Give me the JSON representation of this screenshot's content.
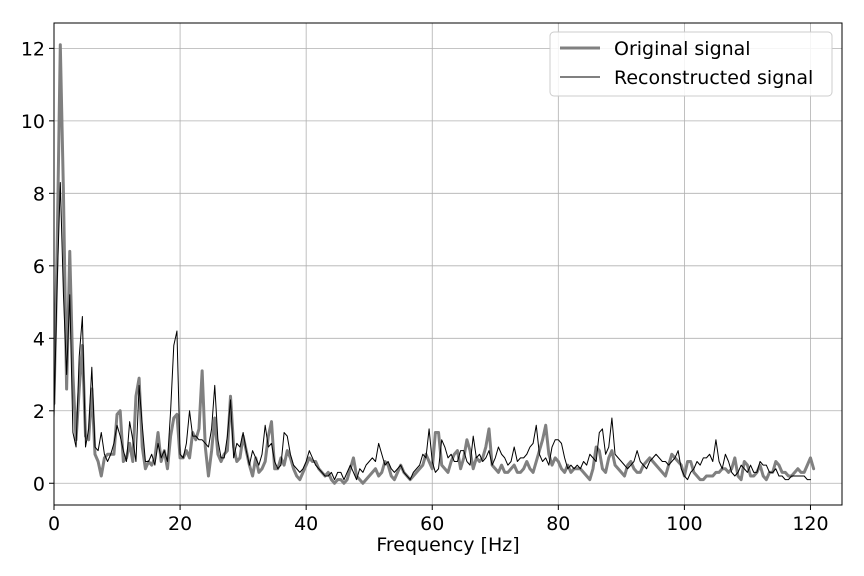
{
  "chart_data": {
    "type": "line",
    "title": "",
    "xlabel": "Frequency [Hz]",
    "ylabel": "",
    "xlim": [
      0,
      125
    ],
    "ylim": [
      -0.6,
      12.7
    ],
    "x_ticks": [
      0,
      20,
      40,
      60,
      80,
      100,
      120
    ],
    "x_tick_labels": [
      "0",
      "20",
      "40",
      "60",
      "80",
      "100",
      "120"
    ],
    "y_ticks": [
      0,
      2,
      4,
      6,
      8,
      10,
      12
    ],
    "y_tick_labels": [
      "0",
      "2",
      "4",
      "6",
      "8",
      "10",
      "12"
    ],
    "grid": true,
    "legend_position": "top-right",
    "x_step": 0.5,
    "series": [
      {
        "name": "Original signal",
        "color": "#808080",
        "line_width": 3,
        "values": [
          2.2,
          6.5,
          12.1,
          8.0,
          2.6,
          6.4,
          3.0,
          1.2,
          2.6,
          3.8,
          1.3,
          1.2,
          2.6,
          0.8,
          0.6,
          0.2,
          0.7,
          0.8,
          0.8,
          0.8,
          1.9,
          2.0,
          0.6,
          0.7,
          1.1,
          0.6,
          2.4,
          2.9,
          1.0,
          0.4,
          0.6,
          0.5,
          0.7,
          1.4,
          0.6,
          0.9,
          0.4,
          1.3,
          1.8,
          1.9,
          0.7,
          0.7,
          0.9,
          0.7,
          1.4,
          1.2,
          1.5,
          3.1,
          1.0,
          0.2,
          0.9,
          1.8,
          0.8,
          0.6,
          0.8,
          0.9,
          2.4,
          1.0,
          0.6,
          0.7,
          1.3,
          0.9,
          0.5,
          0.2,
          0.7,
          0.3,
          0.4,
          0.6,
          1.3,
          1.7,
          0.4,
          0.4,
          0.7,
          0.5,
          0.9,
          0.7,
          0.4,
          0.2,
          0.1,
          0.3,
          0.5,
          0.7,
          0.6,
          0.6,
          0.4,
          0.3,
          0.2,
          0.3,
          0.1,
          0.0,
          0.1,
          0.1,
          0.0,
          0.1,
          0.4,
          0.7,
          0.2,
          0.1,
          0.0,
          0.1,
          0.2,
          0.3,
          0.4,
          0.2,
          0.3,
          0.6,
          0.5,
          0.2,
          0.1,
          0.3,
          0.5,
          0.3,
          0.2,
          0.1,
          0.2,
          0.3,
          0.4,
          0.5,
          0.8,
          0.6,
          0.4,
          1.4,
          1.4,
          0.5,
          0.4,
          0.3,
          0.6,
          0.8,
          0.9,
          0.4,
          0.7,
          1.2,
          0.9,
          0.4,
          0.7,
          0.6,
          0.7,
          1.0,
          1.5,
          0.5,
          0.4,
          0.3,
          0.5,
          0.3,
          0.3,
          0.4,
          0.5,
          0.3,
          0.3,
          0.4,
          0.6,
          0.4,
          0.3,
          0.6,
          0.9,
          1.2,
          1.6,
          0.8,
          0.5,
          0.7,
          0.6,
          0.4,
          0.3,
          0.5,
          0.3,
          0.4,
          0.4,
          0.4,
          0.3,
          0.2,
          0.1,
          0.4,
          1.0,
          0.9,
          0.4,
          0.3,
          0.7,
          0.9,
          0.5,
          0.4,
          0.3,
          0.2,
          0.5,
          0.6,
          0.4,
          0.3,
          0.3,
          0.5,
          0.6,
          0.7,
          0.6,
          0.5,
          0.4,
          0.3,
          0.2,
          0.5,
          0.8,
          0.7,
          0.6,
          0.5,
          0.2,
          0.6,
          0.6,
          0.3,
          0.2,
          0.1,
          0.1,
          0.2,
          0.2,
          0.2,
          0.3,
          0.3,
          0.4,
          0.4,
          0.3,
          0.4,
          0.7,
          0.2,
          0.1,
          0.6,
          0.5,
          0.2,
          0.2,
          0.3,
          0.5,
          0.2,
          0.1,
          0.3,
          0.3,
          0.6,
          0.5,
          0.3,
          0.3,
          0.2,
          0.2,
          0.3,
          0.4,
          0.3,
          0.3,
          0.5,
          0.7,
          0.4
        ]
      },
      {
        "name": "Reconstructed signal",
        "color": "#000000",
        "line_width": 1,
        "values": [
          1.8,
          5.5,
          8.3,
          5.2,
          3.0,
          5.2,
          1.4,
          1.0,
          3.5,
          4.6,
          1.0,
          1.5,
          3.2,
          1.0,
          0.9,
          1.4,
          0.8,
          0.6,
          0.8,
          1.1,
          1.6,
          1.3,
          0.9,
          0.6,
          1.7,
          1.2,
          0.6,
          2.7,
          1.6,
          0.6,
          0.6,
          0.8,
          0.5,
          1.1,
          0.7,
          0.9,
          0.6,
          2.0,
          3.8,
          4.2,
          0.8,
          0.7,
          1.1,
          2.0,
          1.3,
          1.3,
          1.2,
          1.2,
          1.1,
          1.0,
          1.5,
          2.7,
          1.2,
          0.7,
          0.7,
          1.3,
          2.3,
          0.7,
          1.1,
          1.0,
          1.4,
          0.9,
          0.5,
          0.9,
          0.7,
          0.5,
          0.8,
          1.6,
          1.0,
          1.1,
          0.6,
          0.4,
          0.5,
          1.4,
          1.3,
          0.8,
          0.5,
          0.4,
          0.3,
          0.4,
          0.6,
          0.9,
          0.7,
          0.5,
          0.4,
          0.3,
          0.2,
          0.2,
          0.3,
          0.1,
          0.3,
          0.3,
          0.1,
          0.3,
          0.5,
          0.3,
          0.1,
          0.4,
          0.3,
          0.5,
          0.6,
          0.7,
          0.6,
          1.1,
          0.8,
          0.5,
          0.6,
          0.4,
          0.3,
          0.4,
          0.5,
          0.3,
          0.2,
          0.1,
          0.3,
          0.4,
          0.5,
          0.8,
          0.7,
          1.5,
          0.6,
          0.3,
          0.4,
          1.2,
          1.0,
          0.7,
          0.8,
          0.6,
          0.6,
          0.9,
          0.9,
          0.6,
          0.5,
          1.3,
          0.7,
          0.8,
          0.6,
          0.7,
          0.9,
          0.5,
          0.7,
          1.0,
          0.8,
          0.7,
          0.5,
          0.6,
          1.0,
          0.6,
          0.7,
          0.7,
          0.8,
          1.0,
          1.1,
          1.6,
          0.8,
          0.6,
          0.7,
          0.5,
          1.0,
          1.2,
          1.2,
          1.1,
          0.7,
          0.4,
          0.5,
          0.4,
          0.5,
          0.4,
          0.6,
          0.5,
          0.8,
          0.7,
          0.6,
          1.4,
          1.5,
          0.8,
          1.0,
          1.8,
          0.8,
          0.7,
          0.6,
          0.5,
          0.4,
          0.5,
          0.6,
          0.9,
          0.6,
          0.5,
          0.4,
          0.6,
          0.7,
          0.8,
          0.7,
          0.6,
          0.6,
          0.5,
          0.6,
          0.7,
          0.9,
          0.4,
          0.2,
          0.1,
          0.3,
          0.4,
          0.6,
          0.5,
          0.7,
          0.7,
          0.8,
          0.6,
          1.2,
          0.6,
          0.4,
          0.8,
          0.6,
          0.3,
          0.2,
          0.3,
          0.5,
          0.4,
          0.3,
          0.5,
          0.3,
          0.3,
          0.6,
          0.5,
          0.5,
          0.3,
          0.3,
          0.4,
          0.2,
          0.2,
          0.1,
          0.1,
          0.2,
          0.2,
          0.2,
          0.2,
          0.2,
          0.1,
          0.1
        ]
      }
    ]
  }
}
